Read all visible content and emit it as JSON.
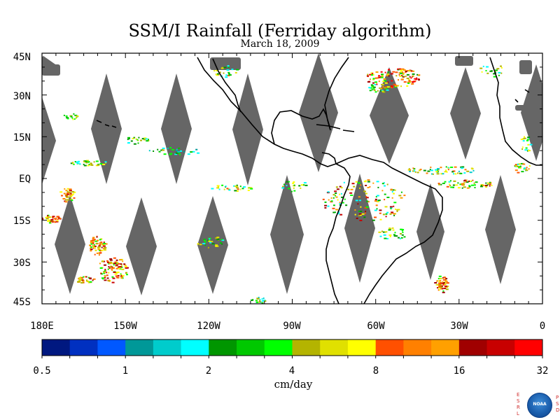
{
  "title": "SSM/I Rainfall (Ferriday algorithm)",
  "subtitle": "March 18, 2009",
  "map": {
    "lat_labels": [
      "45N",
      "30N",
      "15N",
      "EQ",
      "15S",
      "30S",
      "45S"
    ],
    "lon_labels": [
      "180E",
      "150W",
      "120W",
      "90W",
      "60W",
      "30W",
      "0"
    ],
    "no_data_color": "#666666",
    "coast_color": "#000000"
  },
  "colorbar": {
    "colors": [
      "#001880",
      "#0030c0",
      "#0058ff",
      "#009898",
      "#00cccc",
      "#00ffff",
      "#009600",
      "#00c800",
      "#00ff00",
      "#b4b400",
      "#e0e000",
      "#ffff00",
      "#ff5000",
      "#ff8000",
      "#ffa000",
      "#a00000",
      "#c80000",
      "#ff0000"
    ],
    "tick_labels": [
      "0.5",
      "1",
      "2",
      "4",
      "8",
      "16",
      "32"
    ],
    "unit": "cm/day"
  },
  "logo": {
    "left_letters": "ESRL",
    "right_letters": "PSD",
    "emblem": "NOAA"
  }
}
